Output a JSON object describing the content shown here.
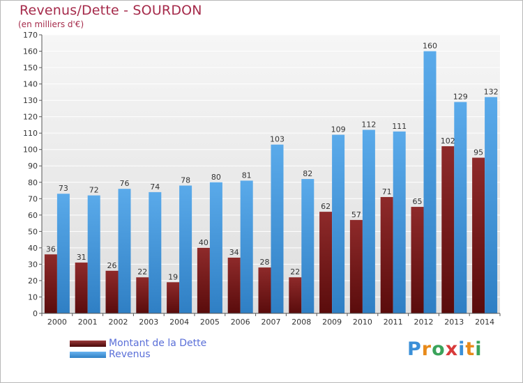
{
  "title": "Revenus/Dette - SOURDON",
  "subtitle": "(en milliers d'€)",
  "logo": {
    "text": "Proxiti",
    "colors": [
      "#3a8fd8",
      "#e88a1a",
      "#3aa35a",
      "#d83a3a",
      "#3a8fd8",
      "#e88a1a",
      "#3aa35a"
    ]
  },
  "legend": [
    {
      "label": "Montant de la Dette",
      "color": "#7a1a1a"
    },
    {
      "label": "Revenus",
      "color": "#3d93dc"
    }
  ],
  "chart_data": {
    "type": "bar",
    "categories": [
      "2000",
      "2001",
      "2002",
      "2003",
      "2004",
      "2005",
      "2006",
      "2007",
      "2008",
      "2009",
      "2010",
      "2011",
      "2012",
      "2013",
      "2014"
    ],
    "series": [
      {
        "name": "Montant de la Dette",
        "color": "#7a1a1a",
        "values": [
          36,
          31,
          26,
          22,
          19,
          40,
          34,
          28,
          22,
          62,
          57,
          71,
          65,
          102,
          95
        ]
      },
      {
        "name": "Revenus",
        "color": "#3d93dc",
        "values": [
          73,
          72,
          76,
          74,
          78,
          80,
          81,
          103,
          82,
          109,
          112,
          111,
          160,
          129,
          132
        ]
      }
    ],
    "ylim": [
      0,
      170
    ],
    "ytick_step": 10,
    "grid": true
  }
}
